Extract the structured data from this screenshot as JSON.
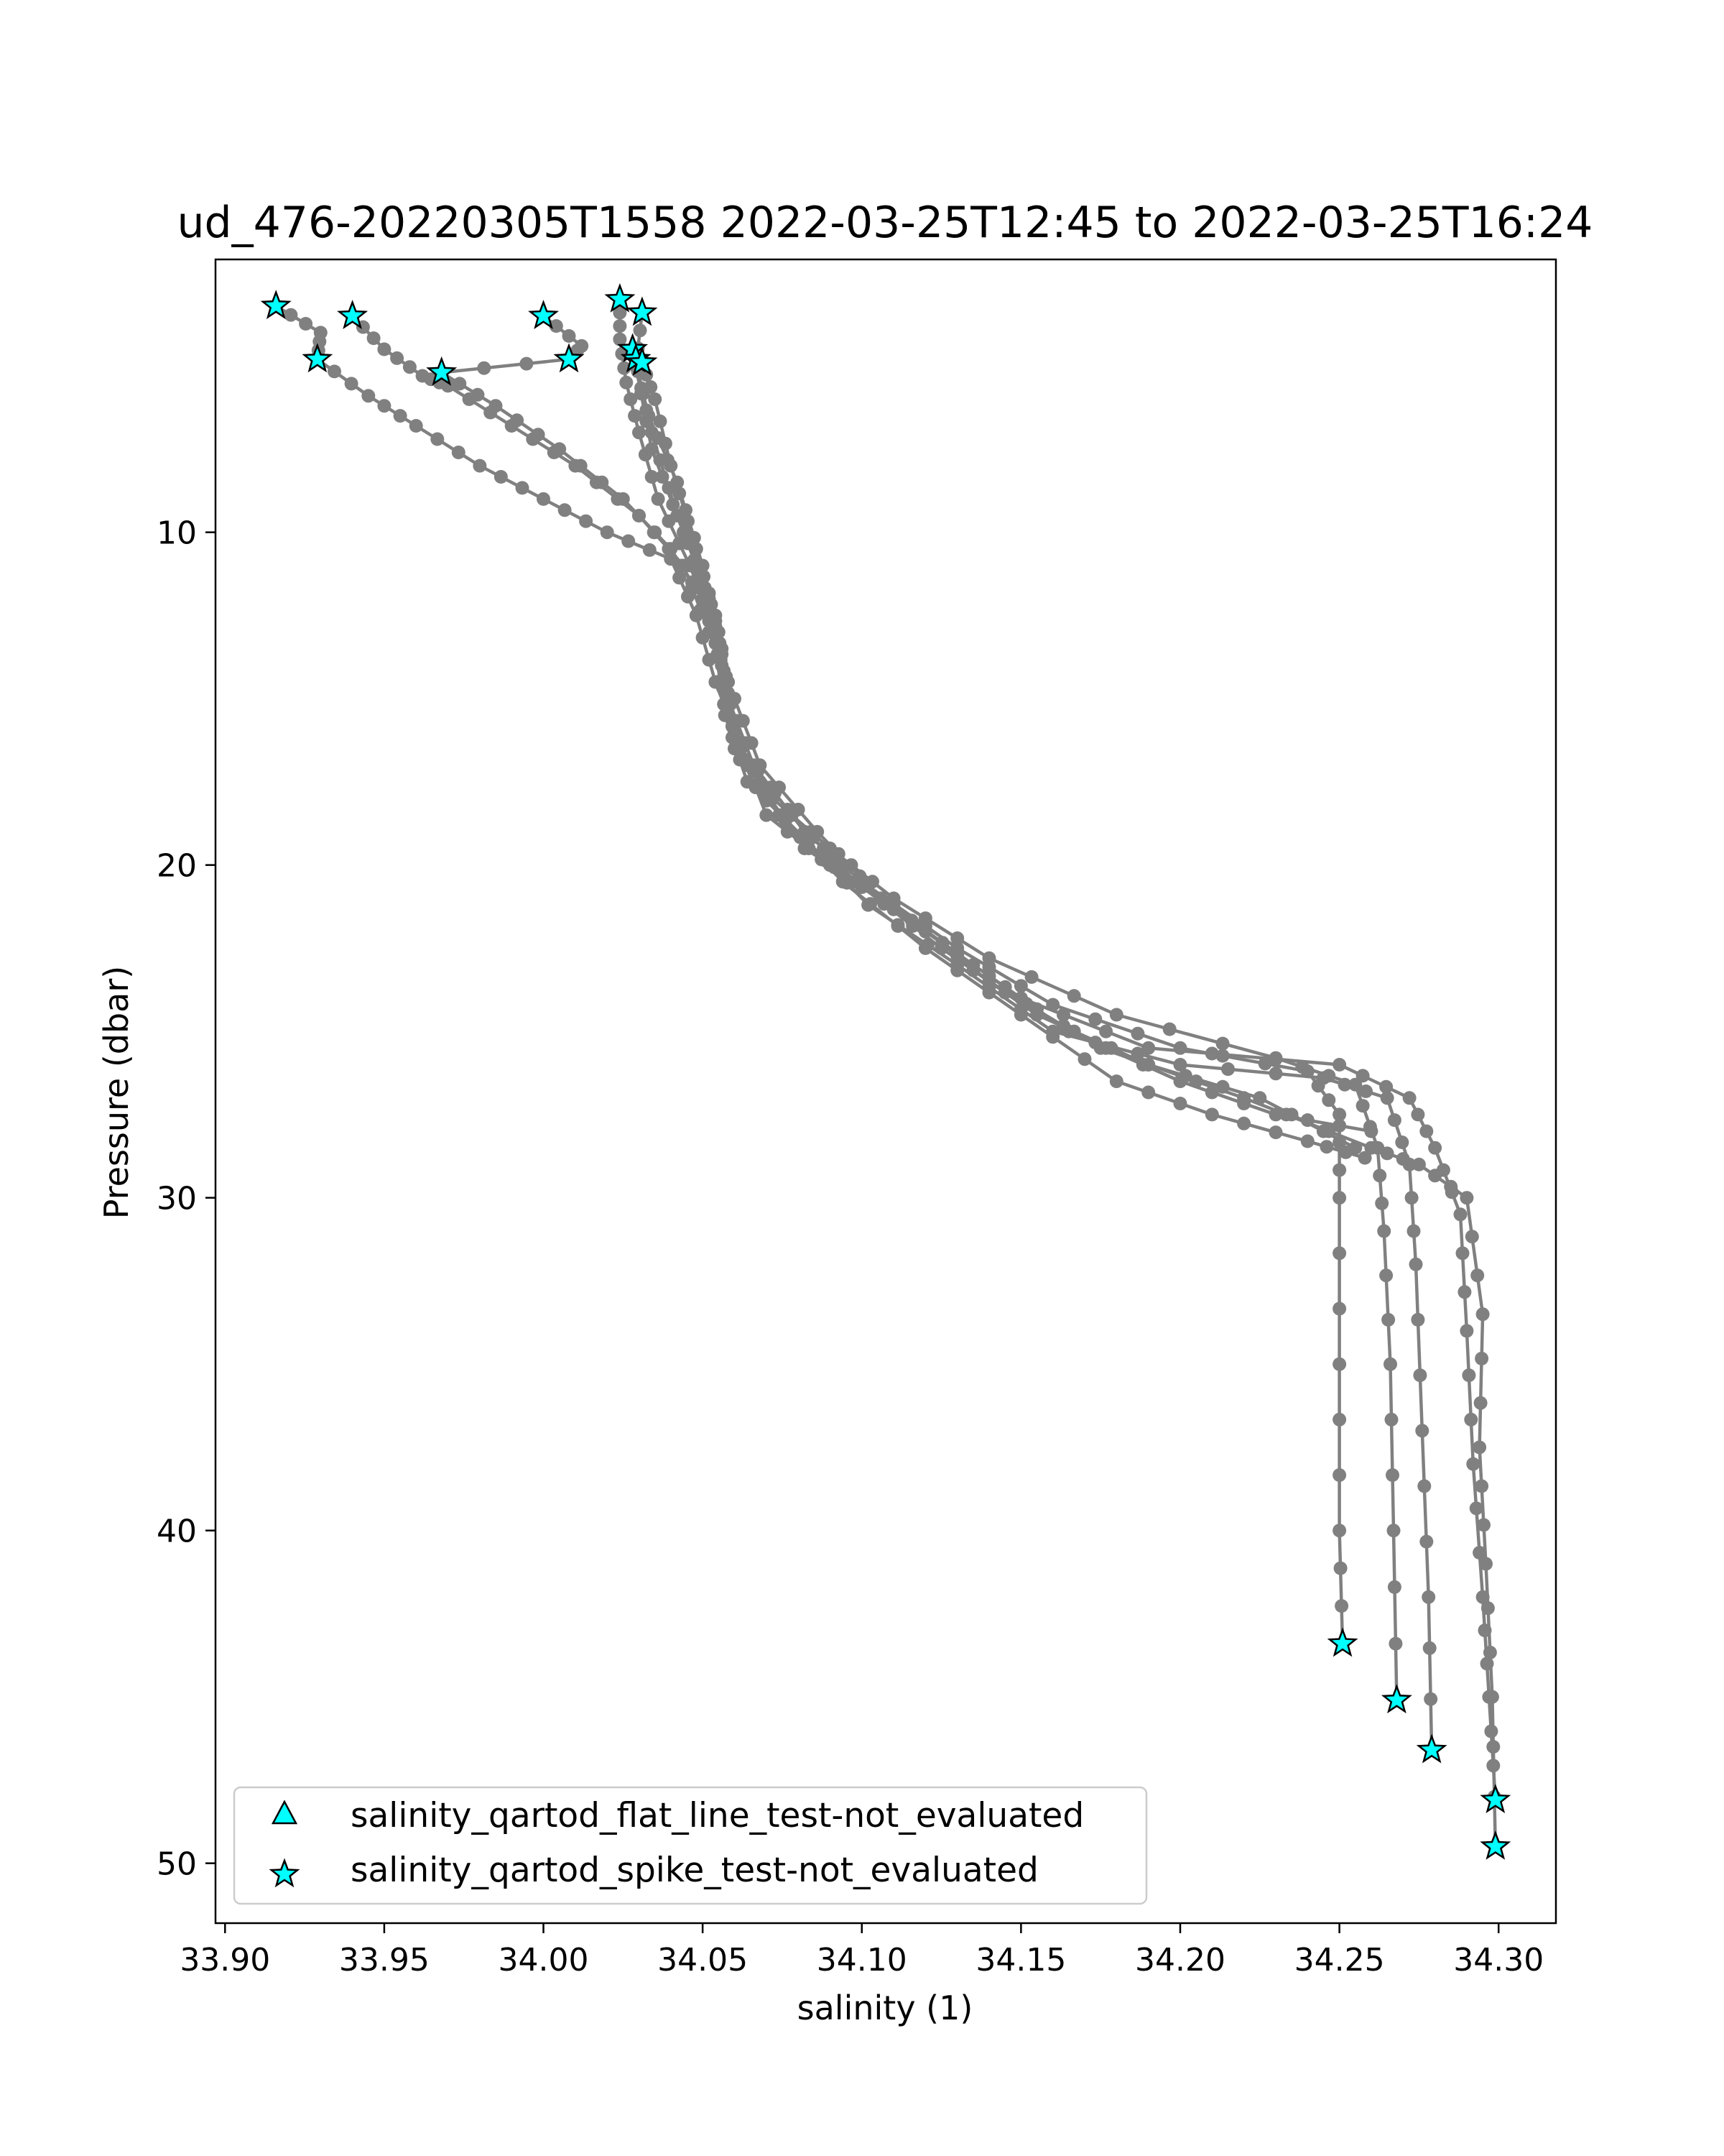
{
  "chart_data": {
    "type": "scatter",
    "title": "ud_476-20220305T1558 2022-03-25T12:45 to 2022-03-25T16:24",
    "xlabel": "salinity (1)",
    "ylabel": "Pressure (dbar)",
    "xlim": [
      33.897,
      34.318
    ],
    "ylim": [
      51.8,
      1.8
    ],
    "y_inverted": true,
    "grid": false,
    "legend_position": "lower-left",
    "x_ticks": [
      "33.90",
      "33.95",
      "34.00",
      "34.05",
      "34.10",
      "34.15",
      "34.20",
      "34.25",
      "34.30"
    ],
    "y_ticks": [
      "10",
      "20",
      "30",
      "40",
      "50"
    ],
    "colors": {
      "profile": "#808080",
      "flag_fill": "#00ffff",
      "flag_edge": "#000000"
    },
    "profiles": [
      {
        "pts": [
          [
            34.024,
            3.0
          ],
          [
            34.024,
            4.2
          ],
          [
            34.026,
            5.5
          ],
          [
            34.03,
            7.0
          ],
          [
            34.036,
            9.0
          ],
          [
            34.046,
            11.0
          ],
          [
            34.054,
            13.0
          ],
          [
            34.058,
            15.0
          ],
          [
            34.066,
            17.0
          ],
          [
            34.082,
            19.0
          ],
          [
            34.1,
            20.5
          ],
          [
            34.13,
            22.5
          ],
          [
            34.16,
            24.2
          ],
          [
            34.2,
            25.5
          ],
          [
            34.24,
            26.2
          ],
          [
            34.25,
            27.5
          ],
          [
            34.25,
            30.0
          ],
          [
            34.25,
            35.0
          ],
          [
            34.25,
            40.0
          ],
          [
            34.251,
            43.4
          ]
        ]
      },
      {
        "pts": [
          [
            34.031,
            3.4
          ],
          [
            34.029,
            5.0
          ],
          [
            34.034,
            7.0
          ],
          [
            34.042,
            9.5
          ],
          [
            34.052,
            12.0
          ],
          [
            34.058,
            14.5
          ],
          [
            34.06,
            16.5
          ],
          [
            34.072,
            18.0
          ],
          [
            34.09,
            19.5
          ],
          [
            34.11,
            21.0
          ],
          [
            34.14,
            22.8
          ],
          [
            34.18,
            24.5
          ],
          [
            34.23,
            25.8
          ],
          [
            34.255,
            26.6
          ],
          [
            34.262,
            28.5
          ],
          [
            34.264,
            31.0
          ],
          [
            34.266,
            35.0
          ],
          [
            34.267,
            40.0
          ],
          [
            34.268,
            45.1
          ]
        ]
      },
      {
        "pts": [
          [
            34.031,
            4.9
          ],
          [
            34.035,
            6.0
          ],
          [
            34.04,
            8.0
          ],
          [
            34.048,
            10.5
          ],
          [
            34.055,
            13.0
          ],
          [
            34.057,
            15.5
          ],
          [
            34.064,
            17.5
          ],
          [
            34.082,
            19.2
          ],
          [
            34.102,
            21.2
          ],
          [
            34.13,
            23.0
          ],
          [
            34.16,
            25.0
          ],
          [
            34.2,
            26.0
          ],
          [
            34.245,
            26.4
          ],
          [
            34.265,
            27.0
          ],
          [
            34.272,
            29.0
          ],
          [
            34.274,
            32.0
          ],
          [
            34.276,
            37.0
          ],
          [
            34.278,
            42.0
          ],
          [
            34.279,
            46.6
          ]
        ]
      },
      {
        "pts": [
          [
            34.028,
            4.5
          ],
          [
            34.033,
            6.5
          ],
          [
            34.042,
            8.5
          ],
          [
            34.05,
            11.0
          ],
          [
            34.056,
            13.5
          ],
          [
            34.06,
            16.0
          ],
          [
            34.07,
            18.5
          ],
          [
            34.09,
            20.0
          ],
          [
            34.12,
            22.0
          ],
          [
            34.15,
            24.0
          ],
          [
            34.19,
            25.5
          ],
          [
            34.25,
            26.0
          ],
          [
            34.272,
            27.0
          ],
          [
            34.28,
            28.5
          ],
          [
            34.288,
            30.5
          ],
          [
            34.29,
            34.0
          ],
          [
            34.292,
            38.0
          ],
          [
            34.295,
            42.0
          ],
          [
            34.297,
            45.0
          ],
          [
            34.299,
            48.1
          ]
        ]
      },
      {
        "pts": [
          [
            34.029,
            5.0
          ],
          [
            34.034,
            7.5
          ],
          [
            34.044,
            10.0
          ],
          [
            34.054,
            12.5
          ],
          [
            34.058,
            15.0
          ],
          [
            34.064,
            17.0
          ],
          [
            34.082,
            19.5
          ],
          [
            34.11,
            21.2
          ],
          [
            34.14,
            23.5
          ],
          [
            34.175,
            25.5
          ],
          [
            34.22,
            27.0
          ],
          [
            34.26,
            28.5
          ],
          [
            34.275,
            29.0
          ],
          [
            34.29,
            30.0
          ],
          [
            34.295,
            33.5
          ],
          [
            34.294,
            37.5
          ],
          [
            34.296,
            41.0
          ],
          [
            34.298,
            45.0
          ],
          [
            34.299,
            49.5
          ]
        ]
      },
      {
        "pts": [
          [
            33.916,
            3.2
          ],
          [
            33.93,
            4.0
          ],
          [
            33.929,
            4.8
          ],
          [
            33.945,
            5.9
          ],
          [
            33.96,
            6.8
          ],
          [
            33.98,
            8.0
          ],
          [
            34.0,
            9.0
          ],
          [
            34.02,
            10.0
          ],
          [
            34.04,
            10.8
          ],
          [
            34.048,
            12.5
          ],
          [
            34.054,
            14.5
          ],
          [
            34.062,
            16.5
          ],
          [
            34.074,
            18.5
          ],
          [
            34.094,
            20.5
          ],
          [
            34.12,
            22.5
          ],
          [
            34.15,
            24.5
          ],
          [
            34.18,
            26.5
          ],
          [
            34.21,
            27.5
          ],
          [
            34.24,
            28.3
          ],
          [
            34.258,
            28.8
          ]
        ]
      },
      {
        "pts": [
          [
            33.94,
            3.5
          ],
          [
            33.95,
            4.5
          ],
          [
            33.962,
            5.3
          ],
          [
            33.97,
            5.6
          ],
          [
            33.99,
            6.8
          ],
          [
            34.01,
            8.0
          ],
          [
            34.03,
            9.5
          ],
          [
            34.044,
            11.0
          ],
          [
            34.052,
            13.0
          ],
          [
            34.06,
            15.0
          ],
          [
            34.068,
            17.0
          ],
          [
            34.086,
            19.0
          ],
          [
            34.106,
            21.0
          ],
          [
            34.135,
            23.0
          ],
          [
            34.165,
            25.0
          ],
          [
            34.2,
            26.5
          ],
          [
            34.23,
            27.5
          ],
          [
            34.26,
            28.0
          ]
        ]
      },
      {
        "pts": [
          [
            34.0,
            3.5
          ],
          [
            34.012,
            4.4
          ],
          [
            34.008,
            4.8
          ],
          [
            33.968,
            5.2
          ],
          [
            33.985,
            6.2
          ],
          [
            34.005,
            7.5
          ],
          [
            34.025,
            9.0
          ],
          [
            34.04,
            10.5
          ],
          [
            34.05,
            12.0
          ],
          [
            34.056,
            14.0
          ],
          [
            34.062,
            16.5
          ],
          [
            34.078,
            18.5
          ],
          [
            34.098,
            20.5
          ],
          [
            34.125,
            22.5
          ],
          [
            34.155,
            24.5
          ],
          [
            34.19,
            26.0
          ],
          [
            34.225,
            27.0
          ],
          [
            34.255,
            28.5
          ]
        ]
      }
    ],
    "legend": [
      {
        "marker": "triangle",
        "label": "salinity_qartod_flat_line_test-not_evaluated",
        "points": []
      },
      {
        "marker": "star",
        "label": "salinity_qartod_spike_test-not_evaluated",
        "points": [
          [
            33.916,
            3.2
          ],
          [
            33.94,
            3.5
          ],
          [
            33.929,
            4.8
          ],
          [
            33.968,
            5.2
          ],
          [
            34.0,
            3.5
          ],
          [
            34.008,
            4.8
          ],
          [
            34.024,
            3.0
          ],
          [
            34.031,
            3.4
          ],
          [
            34.028,
            4.5
          ],
          [
            34.029,
            4.8
          ],
          [
            34.031,
            4.9
          ],
          [
            34.251,
            43.4
          ],
          [
            34.268,
            45.1
          ],
          [
            34.279,
            46.6
          ],
          [
            34.299,
            48.1
          ],
          [
            34.299,
            49.5
          ]
        ]
      }
    ]
  }
}
